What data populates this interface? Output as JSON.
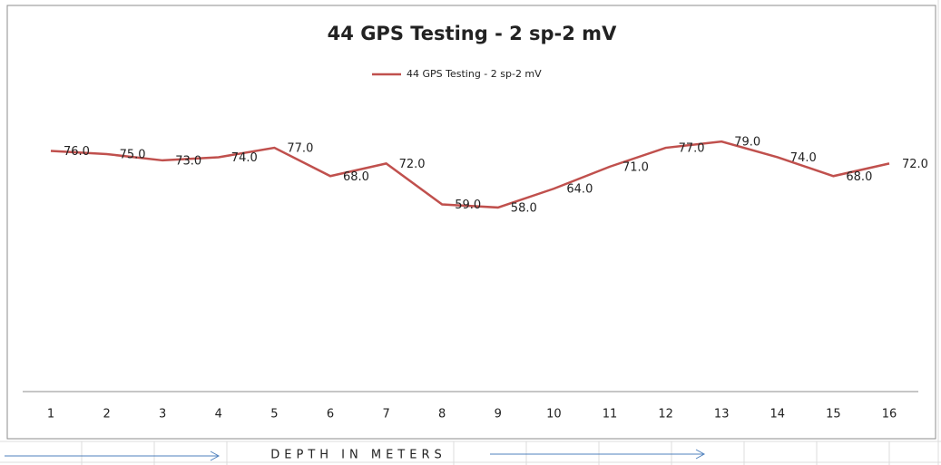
{
  "chart_data": {
    "type": "line",
    "title": "44 GPS Testing  - 2 sp-2 mV",
    "x_label": "DEPTH IN METERS",
    "categories": [
      "1",
      "2",
      "3",
      "4",
      "5",
      "6",
      "7",
      "8",
      "9",
      "10",
      "11",
      "12",
      "13",
      "14",
      "15",
      "16"
    ],
    "series": [
      {
        "name": "44 GPS Testing  - 2 sp-2 mV",
        "color": "#c0504d",
        "values": [
          76,
          75,
          73,
          74,
          77,
          68,
          72,
          59,
          58,
          64,
          71,
          77,
          79,
          74,
          68,
          72
        ],
        "value_labels": [
          "76.0",
          "75.0",
          "73.0",
          "74.0",
          "77.0",
          "68.0",
          "72.0",
          "59.0",
          "58.0",
          "64.0",
          "71.0",
          "77.0",
          "79.0",
          "74.0",
          "68.0",
          "72.0"
        ]
      }
    ],
    "ylim": [
      0,
      90
    ]
  }
}
